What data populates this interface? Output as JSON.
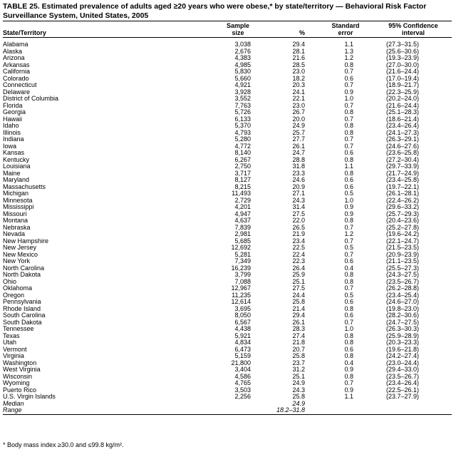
{
  "title": "TABLE 25. Estimated prevalence of adults aged ≥20 years who were obese,* by state/territory — Behavioral Risk Factor Surveillance System, United States, 2005",
  "columns": [
    "State/Territory",
    "Sample size",
    "%",
    "Standard error",
    "95% Confidence interval"
  ],
  "rows": [
    [
      "Alabama",
      "3,038",
      "29.4",
      "1.1",
      "(27.3–31.5)"
    ],
    [
      "Alaska",
      "2,676",
      "28.1",
      "1.3",
      "(25.6–30.6)"
    ],
    [
      "Arizona",
      "4,383",
      "21.6",
      "1.2",
      "(19.3–23.9)"
    ],
    [
      "Arkansas",
      "4,985",
      "28.5",
      "0.8",
      "(27.0–30.0)"
    ],
    [
      "California",
      "5,830",
      "23.0",
      "0.7",
      "(21.6–24.4)"
    ],
    [
      "Colorado",
      "5,660",
      "18.2",
      "0.6",
      "(17.0–19.4)"
    ],
    [
      "Connecticut",
      "4,921",
      "20.3",
      "0.7",
      "(18.9–21.7)"
    ],
    [
      "Delaware",
      "3,928",
      "24.1",
      "0.9",
      "(22.3–25.9)"
    ],
    [
      "District of Columbia",
      "3,552",
      "22.1",
      "1.0",
      "(20.2–24.0)"
    ],
    [
      "Florida",
      "7,763",
      "23.0",
      "0.7",
      "(21.6–24.4)"
    ],
    [
      "Georgia",
      "5,726",
      "26.7",
      "0.8",
      "(25.1–28.3)"
    ],
    [
      "Hawaii",
      "6,133",
      "20.0",
      "0.7",
      "(18.6–21.4)"
    ],
    [
      "Idaho",
      "5,370",
      "24.9",
      "0.8",
      "(23.4–26.4)"
    ],
    [
      "Illinois",
      "4,793",
      "25.7",
      "0.8",
      "(24.1–27.3)"
    ],
    [
      "Indiana",
      "5,280",
      "27.7",
      "0.7",
      "(26.3–29.1)"
    ],
    [
      "Iowa",
      "4,772",
      "26.1",
      "0.7",
      "(24.6–27.6)"
    ],
    [
      "Kansas",
      "8,140",
      "24.7",
      "0.6",
      "(23.6–25.8)"
    ],
    [
      "Kentucky",
      "6,267",
      "28.8",
      "0.8",
      "(27.2–30.4)"
    ],
    [
      "Louisiana",
      "2,750",
      "31.8",
      "1.1",
      "(29.7–33.9)"
    ],
    [
      "Maine",
      "3,717",
      "23.3",
      "0.8",
      "(21.7–24.9)"
    ],
    [
      "Maryland",
      "8,127",
      "24.6",
      "0.6",
      "(23.4–25.8)"
    ],
    [
      "Massachusetts",
      "8,215",
      "20.9",
      "0.6",
      "(19.7–22.1)"
    ],
    [
      "Michigan",
      "11,493",
      "27.1",
      "0.5",
      "(26.1–28.1)"
    ],
    [
      "Minnesota",
      "2,729",
      "24.3",
      "1.0",
      "(22.4–26.2)"
    ],
    [
      "Mississippi",
      "4,201",
      "31.4",
      "0.9",
      "(29.6–33.2)"
    ],
    [
      "Missouri",
      "4,947",
      "27.5",
      "0.9",
      "(25.7–29.3)"
    ],
    [
      "Montana",
      "4,637",
      "22.0",
      "0.8",
      "(20.4–23.6)"
    ],
    [
      "Nebraska",
      "7,839",
      "26.5",
      "0.7",
      "(25.2–27.8)"
    ],
    [
      "Nevada",
      "2,981",
      "21.9",
      "1.2",
      "(19.6–24.2)"
    ],
    [
      "New Hampshire",
      "5,685",
      "23.4",
      "0.7",
      "(22.1–24.7)"
    ],
    [
      "New Jersey",
      "12,692",
      "22.5",
      "0.5",
      "(21.5–23.5)"
    ],
    [
      "New Mexico",
      "5,281",
      "22.4",
      "0.7",
      "(20.9–23.9)"
    ],
    [
      "New York",
      "7,349",
      "22.3",
      "0.6",
      "(21.1–23.5)"
    ],
    [
      "North Carolina",
      "16,239",
      "26.4",
      "0.4",
      "(25.5–27.3)"
    ],
    [
      "North Dakota",
      "3,799",
      "25.9",
      "0.8",
      "(24.3–27.5)"
    ],
    [
      "Ohio",
      "7,088",
      "25.1",
      "0.8",
      "(23.5–26.7)"
    ],
    [
      "Oklahoma",
      "12,967",
      "27.5",
      "0.7",
      "(26.2–28.8)"
    ],
    [
      "Oregon",
      "11,235",
      "24.4",
      "0.5",
      "(23.4–25.4)"
    ],
    [
      "Pennsylvania",
      "12,614",
      "25.8",
      "0.6",
      "(24.6–27.0)"
    ],
    [
      "Rhode Island",
      "3,695",
      "21.4",
      "0.8",
      "(19.8–23.0)"
    ],
    [
      "South Carolina",
      "8,050",
      "29.4",
      "0.6",
      "(28.2–30.6)"
    ],
    [
      "South Dakota",
      "6,567",
      "26.1",
      "0.7",
      "(24.7–27.5)"
    ],
    [
      "Tennessee",
      "4,438",
      "28.3",
      "1.0",
      "(26.3–30.3)"
    ],
    [
      "Texas",
      "5,921",
      "27.4",
      "0.8",
      "(25.9–28.9)"
    ],
    [
      "Utah",
      "4,834",
      "21.8",
      "0.8",
      "(20.3–23.3)"
    ],
    [
      "Vermont",
      "6,473",
      "20.7",
      "0.6",
      "(19.6–21.8)"
    ],
    [
      "Virginia",
      "5,159",
      "25.8",
      "0.8",
      "(24.2–27.4)"
    ],
    [
      "Washington",
      "21,800",
      "23.7",
      "0.4",
      "(23.0–24.4)"
    ],
    [
      "West Virginia",
      "3,404",
      "31.2",
      "0.9",
      "(29.4–33.0)"
    ],
    [
      "Wisconsin",
      "4,586",
      "25.1",
      "0.8",
      "(23.5–26.7)"
    ],
    [
      "Wyoming",
      "4,765",
      "24.9",
      "0.7",
      "(23.4–26.4)"
    ],
    [
      "Puerto Rico",
      "3,503",
      "24.3",
      "0.9",
      "(22.5–26.1)"
    ],
    [
      "U.S. Virgin Islands",
      "2,256",
      "25.8",
      "1.1",
      "(23.7–27.9)"
    ]
  ],
  "summary": [
    {
      "label": "Median",
      "percent": "24.9"
    },
    {
      "label": "Range",
      "percent": "18.2–31.8"
    }
  ],
  "footnote": "* Body mass index ≥30.0 and ≤99.8 kg/m²."
}
